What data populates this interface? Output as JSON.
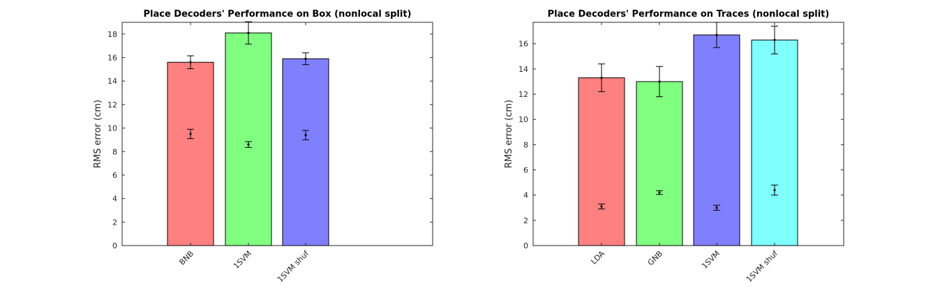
{
  "chart_data": [
    {
      "type": "bar",
      "title": "Place Decoders' Performance on Box (nonlocal split)",
      "ylabel": "RMS error (cm)",
      "xlabel": "",
      "ylim": [
        0,
        19
      ],
      "yticks": [
        0,
        2,
        4,
        6,
        8,
        10,
        12,
        14,
        16,
        18
      ],
      "xlim": [
        0.2,
        5.6
      ],
      "grid": false,
      "categories": [
        "BNB",
        "1SVM",
        "1SVM shuf"
      ],
      "colors": [
        "#ff8080",
        "#80ff80",
        "#8080ff"
      ],
      "values": [
        15.6,
        18.1,
        15.9
      ],
      "error": [
        0.55,
        0.95,
        0.5
      ],
      "secondary_values": [
        9.5,
        8.6,
        9.4
      ],
      "secondary_error": [
        0.4,
        0.25,
        0.4
      ]
    },
    {
      "type": "bar",
      "title": "Place Decoders' Performance on Traces (nonlocal split)",
      "ylabel": "RMS error (cm)",
      "xlabel": "",
      "ylim": [
        0,
        17.7
      ],
      "yticks": [
        0,
        2,
        4,
        6,
        8,
        10,
        12,
        14,
        16
      ],
      "xlim": [
        0.2,
        5.6
      ],
      "grid": false,
      "categories": [
        "LDA",
        "GNB",
        "1SVM",
        "1SVM shuf"
      ],
      "colors": [
        "#ff8080",
        "#80ff80",
        "#8080ff",
        "#80ffff"
      ],
      "values": [
        13.3,
        13.0,
        16.7,
        16.3
      ],
      "error": [
        1.1,
        1.2,
        1.0,
        1.1
      ],
      "secondary_values": [
        3.1,
        4.2,
        3.0,
        4.4
      ],
      "secondary_error": [
        0.2,
        0.15,
        0.2,
        0.4
      ]
    }
  ]
}
